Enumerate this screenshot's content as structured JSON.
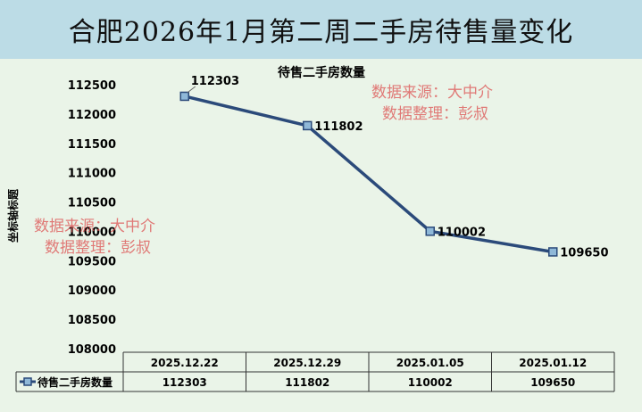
{
  "page_title": "合肥2026年1月第二周二手房待售量变化",
  "watermarks": [
    {
      "line1": "数据来源：大中介",
      "line2": "数据整理：彭叔"
    },
    {
      "line1": "数据来源：大中介",
      "line2": "数据整理：彭叔"
    }
  ],
  "colors": {
    "banner": "#bcdce6",
    "background": "#eaf4e8",
    "line": "#2b4a7a",
    "marker_fill": "#8fb8d8",
    "watermark": "#dc5050"
  },
  "chart_data": {
    "type": "line",
    "title": "待售二手房数量",
    "xlabel": "",
    "ylabel": "坐标轴标题",
    "categories": [
      "2025.12.22",
      "2025.12.29",
      "2025.01.05",
      "2025.01.12"
    ],
    "series": [
      {
        "name": "待售二手房数量",
        "values": [
          112303,
          111802,
          110002,
          109650
        ]
      }
    ],
    "ylim": [
      108000,
      112500
    ],
    "yticks": [
      108000,
      108500,
      109000,
      109500,
      110000,
      110500,
      111000,
      111500,
      112000,
      112500
    ],
    "data_labels": [
      "112303",
      "111802",
      "110002",
      "109650"
    ],
    "grid": false,
    "legend": "data-table"
  }
}
